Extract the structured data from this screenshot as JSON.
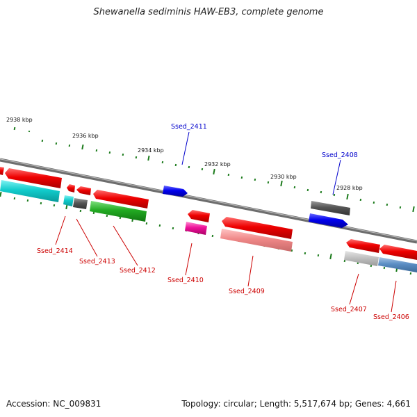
{
  "title": "Shewanella sediminis HAW-EB3, complete genome",
  "footer": {
    "accession": "Accession: NC_009831",
    "summary": "Topology: circular; Length: 5,517,674 bp; Genes: 4,661"
  },
  "scale_labels": [
    "2938 kbp",
    "2936 kbp",
    "2934 kbp",
    "2932 kbp",
    "2930 kbp",
    "2928 kbp"
  ],
  "gene_labels": [
    {
      "text": "Ssed_2411",
      "color": "#0000cc"
    },
    {
      "text": "Ssed_2408",
      "color": "#0000cc"
    },
    {
      "text": "Ssed_2414",
      "color": "#cc0000"
    },
    {
      "text": "Ssed_2413",
      "color": "#cc0000"
    },
    {
      "text": "Ssed_2412",
      "color": "#cc0000"
    },
    {
      "text": "Ssed_2410",
      "color": "#cc0000"
    },
    {
      "text": "Ssed_2409",
      "color": "#cc0000"
    },
    {
      "text": "Ssed_2407",
      "color": "#cc0000"
    },
    {
      "text": "Ssed_2406",
      "color": "#cc0000"
    }
  ]
}
